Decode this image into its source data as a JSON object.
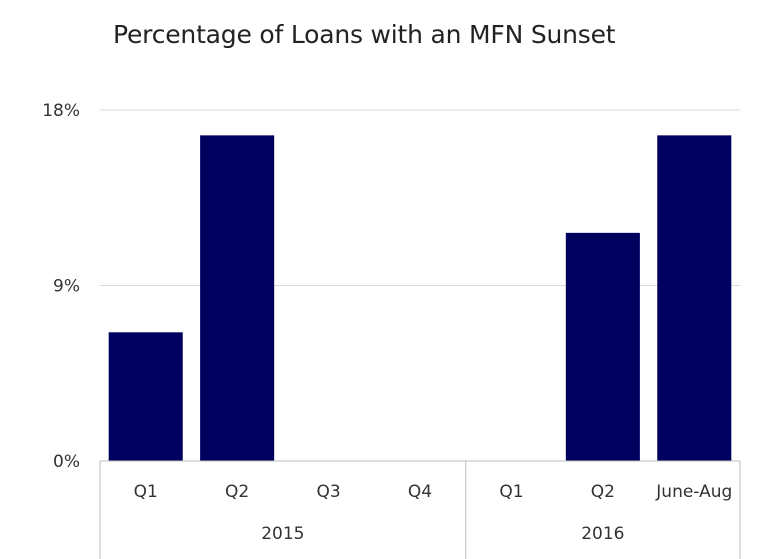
{
  "chart_data": {
    "type": "bar",
    "title": "Percentage of Loans with an MFN Sunset",
    "xlabel": "",
    "ylabel": "",
    "ylim": [
      0,
      18
    ],
    "yticks": [
      "0%",
      "9%",
      "18%"
    ],
    "ytick_values": [
      0,
      9,
      18
    ],
    "grid": true,
    "legend": "none",
    "bar_color": "#00005F",
    "groups": [
      {
        "label": "2015",
        "categories": [
          "Q1",
          "Q2",
          "Q3",
          "Q4"
        ],
        "values": [
          6.6,
          16.7,
          0,
          0
        ]
      },
      {
        "label": "2016",
        "categories": [
          "Q1",
          "Q2",
          "June-Aug"
        ],
        "values": [
          0,
          11.7,
          16.7
        ]
      }
    ]
  }
}
